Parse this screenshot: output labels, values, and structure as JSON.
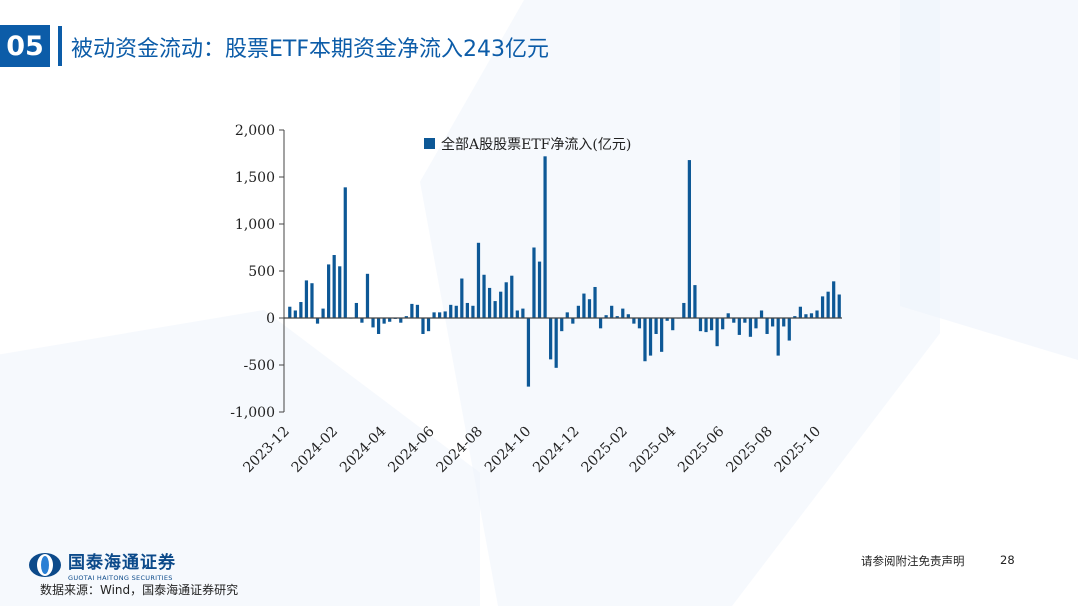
{
  "section_number": "05",
  "title": "被动资金流动：股票ETF本期资金净流入243亿元",
  "footer": {
    "logo_cn": "国泰海通证券",
    "logo_en": "GUOTAI HAITONG SECURITIES",
    "source": "数据来源：Wind，国泰海通证券研究",
    "disclaimer": "请参阅附注免责声明",
    "page": "28"
  },
  "colors": {
    "accent": "#0c5ca8",
    "bar": "#0d5896"
  },
  "chart_data": {
    "type": "bar",
    "legend": "全部A股股票ETF净流入(亿元)",
    "legend_position": "top-center",
    "ylim": [
      -1000,
      2000
    ],
    "yticks": [
      2000,
      1500,
      1000,
      500,
      0,
      -500,
      -1000
    ],
    "ytick_labels": [
      "2,000",
      "1,500",
      "1,000",
      "500",
      "0",
      "-500",
      "-1,000"
    ],
    "xtick_labels": [
      "2023-12",
      "2024-02",
      "2024-04",
      "2024-06",
      "2024-08",
      "2024-10",
      "2024-12",
      "2025-02",
      "2025-04",
      "2025-06",
      "2025-08",
      "2025-10"
    ],
    "values": [
      120,
      80,
      170,
      400,
      370,
      -60,
      100,
      570,
      670,
      550,
      1390,
      0,
      160,
      -50,
      470,
      -100,
      -170,
      -60,
      -40,
      -10,
      -50,
      20,
      150,
      140,
      -170,
      -140,
      60,
      60,
      70,
      140,
      130,
      420,
      160,
      130,
      800,
      460,
      320,
      180,
      280,
      380,
      450,
      80,
      100,
      -730,
      750,
      600,
      1720,
      -440,
      -530,
      -140,
      60,
      -60,
      130,
      260,
      200,
      330,
      -110,
      30,
      130,
      20,
      100,
      40,
      -60,
      -110,
      -460,
      -400,
      -170,
      -360,
      -30,
      -130,
      0,
      160,
      1680,
      350,
      -140,
      -150,
      -130,
      -300,
      -120,
      50,
      -50,
      -180,
      -50,
      -200,
      -110,
      80,
      -170,
      -90,
      -400,
      -90,
      -240,
      20,
      120,
      40,
      50,
      80,
      230,
      280,
      390,
      250
    ]
  }
}
